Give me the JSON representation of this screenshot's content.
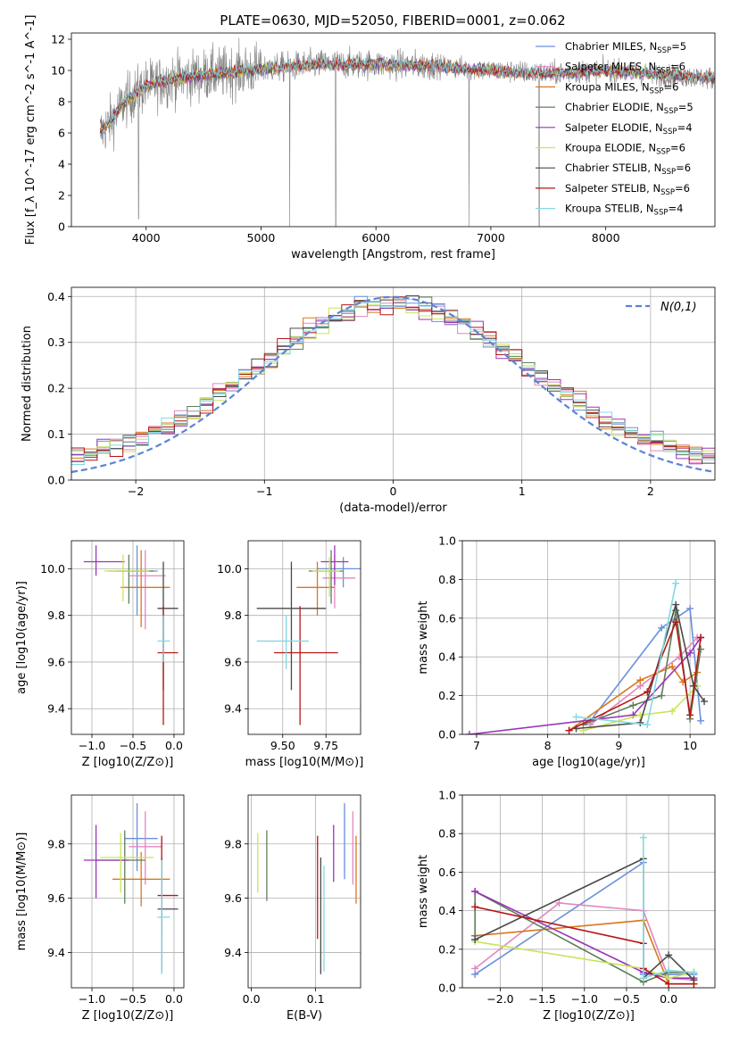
{
  "figure": {
    "title": "PLATE=0630, MJD=52050, FIBERID=0001, z=0.062"
  },
  "models": [
    {
      "label": "Chabrier MILES, N_SSP=5",
      "imf": "Chabrier",
      "lib": "MILES",
      "nssp": "5",
      "color": "#6a8fdc"
    },
    {
      "label": "Salpeter MILES, N_SSP=6",
      "imf": "Salpeter",
      "lib": "MILES",
      "nssp": "6",
      "color": "#e287bf"
    },
    {
      "label": "Kroupa MILES, N_SSP=6",
      "imf": "Kroupa",
      "lib": "MILES",
      "nssp": "6",
      "color": "#d9781f"
    },
    {
      "label": "Chabrier ELODIE, N_SSP=5",
      "imf": "Chabrier",
      "lib": "ELODIE",
      "nssp": "5",
      "color": "#5e7f5a"
    },
    {
      "label": "Salpeter ELODIE, N_SSP=4",
      "imf": "Salpeter",
      "lib": "ELODIE",
      "nssp": "4",
      "color": "#9b34b9"
    },
    {
      "label": "Kroupa ELODIE, N_SSP=6",
      "imf": "Kroupa",
      "lib": "ELODIE",
      "nssp": "6",
      "color": "#c9e45a"
    },
    {
      "label": "Chabrier STELIB, N_SSP=6",
      "imf": "Chabrier",
      "lib": "STELIB",
      "nssp": "6",
      "color": "#4a4a4a"
    },
    {
      "label": "Salpeter STELIB, N_SSP=6",
      "imf": "Salpeter",
      "lib": "STELIB",
      "nssp": "6",
      "color": "#b81616"
    },
    {
      "label": "Kroupa STELIB, N_SSP=4",
      "imf": "Kroupa",
      "lib": "STELIB",
      "nssp": "4",
      "color": "#83d8e4"
    }
  ],
  "chart_data": [
    {
      "id": "spectrum",
      "type": "line",
      "xlabel": "wavelength [Angstrom, rest frame]",
      "ylabel": "Flux [f_λ 10^-17 erg cm^-2 s^-1 A^-1]",
      "xlim": [
        3350,
        8950
      ],
      "ylim": [
        0,
        12.4
      ],
      "xticks": [
        4000,
        5000,
        6000,
        7000,
        8000
      ],
      "yticks": [
        0,
        2,
        4,
        6,
        8,
        10,
        12
      ],
      "grid": false,
      "legend": "right",
      "x_range": [
        3600,
        8950
      ],
      "data_color": "#808080",
      "continuum_knots": [
        [
          3600,
          6.0
        ],
        [
          3700,
          6.8
        ],
        [
          3800,
          7.9
        ],
        [
          3900,
          8.5
        ],
        [
          4000,
          9.0
        ],
        [
          4200,
          9.4
        ],
        [
          4500,
          9.7
        ],
        [
          5000,
          10.1
        ],
        [
          5500,
          10.4
        ],
        [
          6000,
          10.4
        ],
        [
          6500,
          10.3
        ],
        [
          7000,
          10.0
        ],
        [
          7500,
          9.8
        ],
        [
          8000,
          10.0
        ],
        [
          8500,
          9.7
        ],
        [
          8950,
          9.5
        ]
      ],
      "spikes": [
        [
          3934,
          0.5
        ],
        [
          5250,
          0.0
        ],
        [
          5650,
          0.0
        ],
        [
          6810,
          0.0
        ],
        [
          7420,
          0.0
        ]
      ]
    },
    {
      "id": "residuals",
      "type": "line",
      "xlabel": "(data-model)/error",
      "ylabel": "Normed distribution",
      "xlim": [
        -2.5,
        2.5
      ],
      "ylim": [
        0,
        0.42
      ],
      "xticks": [
        -2,
        -1,
        0,
        1,
        2
      ],
      "yticks": [
        0.0,
        0.1,
        0.2,
        0.3,
        0.4
      ],
      "grid": true,
      "legend": "top-right",
      "reference_label": "N(0,1)",
      "reference_color": "#5b84d6",
      "bin_width": 0.1
    },
    {
      "id": "age_vs_Z",
      "type": "scatter",
      "xlabel": "Z [log10(Z/Z⊙)]",
      "ylabel": "age [log10(age/yr)]",
      "xlim": [
        -1.25,
        0.12
      ],
      "ylim": [
        9.29,
        10.12
      ],
      "xticks": [
        -1.0,
        -0.5,
        0.0
      ],
      "yticks": [
        9.4,
        9.6,
        9.8,
        10.0
      ],
      "grid": true,
      "points": [
        {
          "x": -0.45,
          "y": 9.99,
          "ex": [
            -0.7,
            -0.2
          ],
          "ey": [
            9.8,
            10.1
          ]
        },
        {
          "x": -0.35,
          "y": 9.97,
          "ex": [
            -0.55,
            -0.1
          ],
          "ey": [
            9.74,
            10.08
          ]
        },
        {
          "x": -0.4,
          "y": 9.92,
          "ex": [
            -0.65,
            -0.05
          ],
          "ey": [
            9.75,
            10.08
          ]
        },
        {
          "x": -0.55,
          "y": 9.99,
          "ex": [
            -0.8,
            -0.25
          ],
          "ey": [
            9.85,
            10.06
          ]
        },
        {
          "x": -0.95,
          "y": 10.03,
          "ex": [
            -1.1,
            -0.6
          ],
          "ey": [
            9.97,
            10.1
          ]
        },
        {
          "x": -0.62,
          "y": 9.99,
          "ex": [
            -0.85,
            -0.3
          ],
          "ey": [
            9.86,
            10.06
          ]
        },
        {
          "x": -0.13,
          "y": 9.83,
          "ex": [
            -0.2,
            0.05
          ],
          "ey": [
            9.48,
            10.03
          ]
        },
        {
          "x": -0.13,
          "y": 9.64,
          "ex": [
            -0.2,
            0.05
          ],
          "ey": [
            9.33,
            9.84
          ]
        },
        {
          "x": -0.13,
          "y": 9.69,
          "ex": [
            -0.2,
            -0.05
          ],
          "ey": [
            9.6,
            9.8
          ]
        }
      ]
    },
    {
      "id": "age_vs_mass",
      "type": "scatter",
      "xlabel": "mass [log10(M/M⊙)]",
      "ylabel": "",
      "xlim": [
        9.3,
        9.95
      ],
      "ylim": [
        9.29,
        10.12
      ],
      "xticks": [
        9.5,
        9.75
      ],
      "yticks": [
        9.4,
        9.6,
        9.8,
        10.0
      ],
      "grid": true,
      "points": [
        {
          "x": 9.85,
          "y": 10.0,
          "ex": [
            9.7,
            9.95
          ],
          "ey": [
            9.92,
            10.05
          ]
        },
        {
          "x": 9.8,
          "y": 9.96,
          "ex": [
            9.73,
            9.92
          ],
          "ey": [
            9.83,
            10.06
          ]
        },
        {
          "x": 9.7,
          "y": 9.92,
          "ex": [
            9.58,
            9.8
          ],
          "ey": [
            9.8,
            10.03
          ]
        },
        {
          "x": 9.78,
          "y": 9.99,
          "ex": [
            9.65,
            9.85
          ],
          "ey": [
            9.85,
            10.08
          ]
        },
        {
          "x": 9.8,
          "y": 10.03,
          "ex": [
            9.72,
            9.88
          ],
          "ey": [
            9.93,
            10.1
          ]
        },
        {
          "x": 9.77,
          "y": 9.99,
          "ex": [
            9.67,
            9.83
          ],
          "ey": [
            9.88,
            10.05
          ]
        },
        {
          "x": 9.55,
          "y": 9.83,
          "ex": [
            9.35,
            9.75
          ],
          "ey": [
            9.48,
            10.03
          ]
        },
        {
          "x": 9.6,
          "y": 9.64,
          "ex": [
            9.45,
            9.82
          ],
          "ey": [
            9.33,
            9.84
          ]
        },
        {
          "x": 9.52,
          "y": 9.69,
          "ex": [
            9.35,
            9.65
          ],
          "ey": [
            9.57,
            9.8
          ]
        }
      ]
    },
    {
      "id": "weight_vs_age",
      "type": "line",
      "xlabel": "age [log10(age/yr)]",
      "ylabel": "mass weight",
      "xlim": [
        6.8,
        10.35
      ],
      "ylim": [
        0,
        1.0
      ],
      "xticks": [
        7,
        8,
        9,
        10
      ],
      "yticks": [
        0.0,
        0.2,
        0.4,
        0.6,
        0.8,
        1.0
      ],
      "grid": true,
      "series": [
        {
          "x": [
            8.6,
            9.6,
            10.0,
            10.15
          ],
          "y": [
            0.07,
            0.55,
            0.65,
            0.07
          ]
        },
        {
          "x": [
            8.6,
            9.3,
            9.85,
            10.1
          ],
          "y": [
            0.05,
            0.25,
            0.4,
            0.5
          ]
        },
        {
          "x": [
            8.3,
            9.3,
            9.75,
            9.9,
            10.1
          ],
          "y": [
            0.02,
            0.28,
            0.35,
            0.27,
            0.32
          ]
        },
        {
          "x": [
            8.5,
            9.2,
            9.6,
            9.8,
            10.0,
            10.15
          ],
          "y": [
            0.05,
            0.15,
            0.2,
            0.64,
            0.08,
            0.44
          ]
        },
        {
          "x": [
            6.9,
            9.2,
            10.0,
            10.15
          ],
          "y": [
            0.0,
            0.1,
            0.42,
            0.5
          ]
        },
        {
          "x": [
            8.5,
            9.3,
            9.75,
            10.1
          ],
          "y": [
            0.02,
            0.1,
            0.12,
            0.25
          ]
        },
        {
          "x": [
            8.4,
            9.3,
            9.8,
            10.05,
            10.2
          ],
          "y": [
            0.03,
            0.06,
            0.67,
            0.25,
            0.17
          ]
        },
        {
          "x": [
            8.3,
            9.4,
            9.8,
            10.0,
            10.15
          ],
          "y": [
            0.02,
            0.22,
            0.58,
            0.1,
            0.5
          ]
        },
        {
          "x": [
            8.4,
            9.4,
            9.8
          ],
          "y": [
            0.09,
            0.05,
            0.78
          ]
        }
      ]
    },
    {
      "id": "mass_vs_Z",
      "type": "scatter",
      "xlabel": "Z [log10(Z/Z⊙)]",
      "ylabel": "mass [log10(M/M⊙)]",
      "xlim": [
        -1.25,
        0.12
      ],
      "ylim": [
        9.27,
        9.98
      ],
      "xticks": [
        -1.0,
        -0.5,
        0.0
      ],
      "yticks": [
        9.4,
        9.6,
        9.8
      ],
      "grid": true,
      "points": [
        {
          "x": -0.45,
          "y": 9.82,
          "ex": [
            -0.6,
            -0.2
          ],
          "ey": [
            9.7,
            9.95
          ]
        },
        {
          "x": -0.35,
          "y": 9.79,
          "ex": [
            -0.55,
            -0.15
          ],
          "ey": [
            9.65,
            9.92
          ]
        },
        {
          "x": -0.4,
          "y": 9.67,
          "ex": [
            -0.75,
            -0.05
          ],
          "ey": [
            9.57,
            9.77
          ]
        },
        {
          "x": -0.6,
          "y": 9.74,
          "ex": [
            -0.95,
            -0.35
          ],
          "ey": [
            9.58,
            9.85
          ]
        },
        {
          "x": -0.95,
          "y": 9.74,
          "ex": [
            -1.1,
            -0.55
          ],
          "ey": [
            9.6,
            9.87
          ]
        },
        {
          "x": -0.65,
          "y": 9.75,
          "ex": [
            -0.9,
            -0.25
          ],
          "ey": [
            9.62,
            9.84
          ]
        },
        {
          "x": -0.15,
          "y": 9.56,
          "ex": [
            -0.2,
            0.05
          ],
          "ey": [
            9.33,
            9.75
          ]
        },
        {
          "x": -0.15,
          "y": 9.61,
          "ex": [
            -0.2,
            0.05
          ],
          "ey": [
            9.45,
            9.83
          ]
        },
        {
          "x": -0.15,
          "y": 9.53,
          "ex": [
            -0.2,
            -0.05
          ],
          "ey": [
            9.32,
            9.74
          ]
        }
      ]
    },
    {
      "id": "mass_vs_ebv",
      "type": "scatter",
      "xlabel": "E(B-V)",
      "ylabel": "",
      "xlim": [
        -0.005,
        0.17
      ],
      "ylim": [
        9.27,
        9.98
      ],
      "xticks": [
        0.0,
        0.1
      ],
      "yticks": [
        9.4,
        9.6,
        9.8
      ],
      "grid": true,
      "points": [
        {
          "x": 0.145,
          "y": 9.82,
          "ey": [
            9.67,
            9.95
          ]
        },
        {
          "x": 0.158,
          "y": 9.79,
          "ey": [
            9.65,
            9.92
          ]
        },
        {
          "x": 0.163,
          "y": 9.7,
          "ey": [
            9.58,
            9.83
          ]
        },
        {
          "x": 0.024,
          "y": 9.73,
          "ey": [
            9.59,
            9.85
          ]
        },
        {
          "x": 0.128,
          "y": 9.78,
          "ey": [
            9.66,
            9.87
          ]
        },
        {
          "x": 0.01,
          "y": 9.73,
          "ey": [
            9.62,
            9.84
          ]
        },
        {
          "x": 0.108,
          "y": 9.55,
          "ey": [
            9.32,
            9.75
          ]
        },
        {
          "x": 0.103,
          "y": 9.64,
          "ey": [
            9.45,
            9.83
          ]
        },
        {
          "x": 0.113,
          "y": 9.52,
          "ey": [
            9.33,
            9.72
          ]
        }
      ]
    },
    {
      "id": "weight_vs_Z",
      "type": "line",
      "xlabel": "Z [log10(Z/Z⊙)]",
      "ylabel": "mass weight",
      "xlim": [
        -2.45,
        0.55
      ],
      "ylim": [
        0,
        1.0
      ],
      "xticks": [
        -2.0,
        -1.5,
        -1.0,
        -0.5,
        0.0
      ],
      "yticks": [
        0.0,
        0.2,
        0.4,
        0.6,
        0.8,
        1.0
      ],
      "grid": true,
      "series": [
        {
          "x": [
            -2.3,
            -0.3,
            -0.3,
            0.0,
            0.3
          ],
          "y": [
            0.07,
            0.65,
            0.07,
            0.07,
            0.07
          ]
        },
        {
          "x": [
            -2.3,
            -1.3,
            -0.3,
            0.0,
            0.3
          ],
          "y": [
            0.1,
            0.44,
            0.4,
            0.05,
            0.04
          ]
        },
        {
          "x": [
            -2.3,
            -0.3,
            0.0,
            0.3
          ],
          "y": [
            0.27,
            0.35,
            0.02,
            0.02
          ]
        },
        {
          "x": [
            -2.3,
            -2.3,
            -0.3,
            0.0,
            0.3
          ],
          "y": [
            0.27,
            0.5,
            0.03,
            0.08,
            0.08
          ]
        },
        {
          "x": [
            -2.3,
            -0.3,
            0.0,
            0.3
          ],
          "y": [
            0.5,
            0.08,
            0.05,
            0.05
          ]
        },
        {
          "x": [
            -2.3,
            -0.3,
            0.0,
            0.3
          ],
          "y": [
            0.24,
            0.1,
            0.05,
            0.08
          ]
        },
        {
          "x": [
            -2.3,
            -0.3,
            -0.3,
            0.0,
            0.3
          ],
          "y": [
            0.25,
            0.67,
            0.05,
            0.17,
            0.04
          ]
        },
        {
          "x": [
            -2.3,
            -0.3,
            -0.3,
            0.0,
            0.3
          ],
          "y": [
            0.42,
            0.23,
            0.1,
            0.02,
            0.02
          ]
        },
        {
          "x": [
            -0.3,
            -0.3,
            0.0,
            0.3
          ],
          "y": [
            0.78,
            0.05,
            0.09,
            0.08
          ]
        }
      ]
    }
  ]
}
